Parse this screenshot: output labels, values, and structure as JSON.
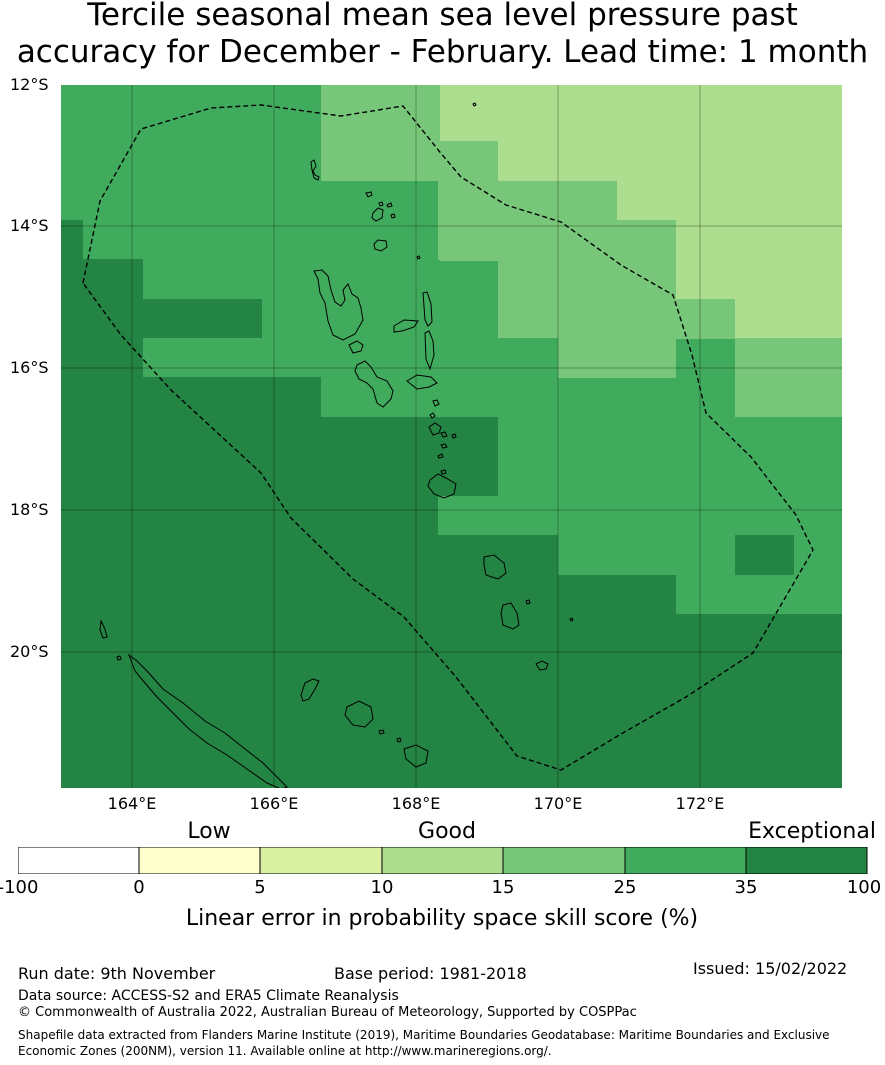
{
  "title": {
    "line1": "Tercile seasonal mean sea level pressure past",
    "line2": "accuracy for December - February. Lead time: 1 month"
  },
  "map": {
    "lat_labels": [
      "12°S",
      "14°S",
      "16°S",
      "18°S",
      "20°S"
    ],
    "lon_labels": [
      "164°E",
      "166°E",
      "168°E",
      "170°E",
      "172°E"
    ]
  },
  "colors": {
    "c5_10": "#d9f0a3",
    "c10_15": "#addd8e",
    "c15_25": "#78c679",
    "c25_35": "#41ab5d",
    "c35_100": "#238443",
    "white": "#ffffff",
    "c0_5": "#ffffcc"
  },
  "colorbar": {
    "categories": [
      "Low",
      "Good",
      "Exceptional"
    ],
    "ticks": [
      "-100",
      "0",
      "5",
      "10",
      "15",
      "25",
      "35",
      "100"
    ],
    "label": "Linear error in probability space skill score (%)"
  },
  "footer": {
    "run_date": "Run date: 9th November",
    "base_period": "Base period: 1981-2018",
    "issued": "Issued: 15/02/2022",
    "data_source": "Data source: ACCESS-S2 and ERA5 Climate Reanalysis",
    "copyright": "© Commonwealth of Australia 2022, Australian Bureau of Meteorology, Supported by COSPPac",
    "shapefile1": "Shapefile data extracted from Flanders Marine Institute (2019), Maritime Boundaries Geodatabase: Maritime Boundaries and Exclusive",
    "shapefile2": "Economic Zones (200NM), version 11. Available online at http://www.marineregions.org/."
  }
}
